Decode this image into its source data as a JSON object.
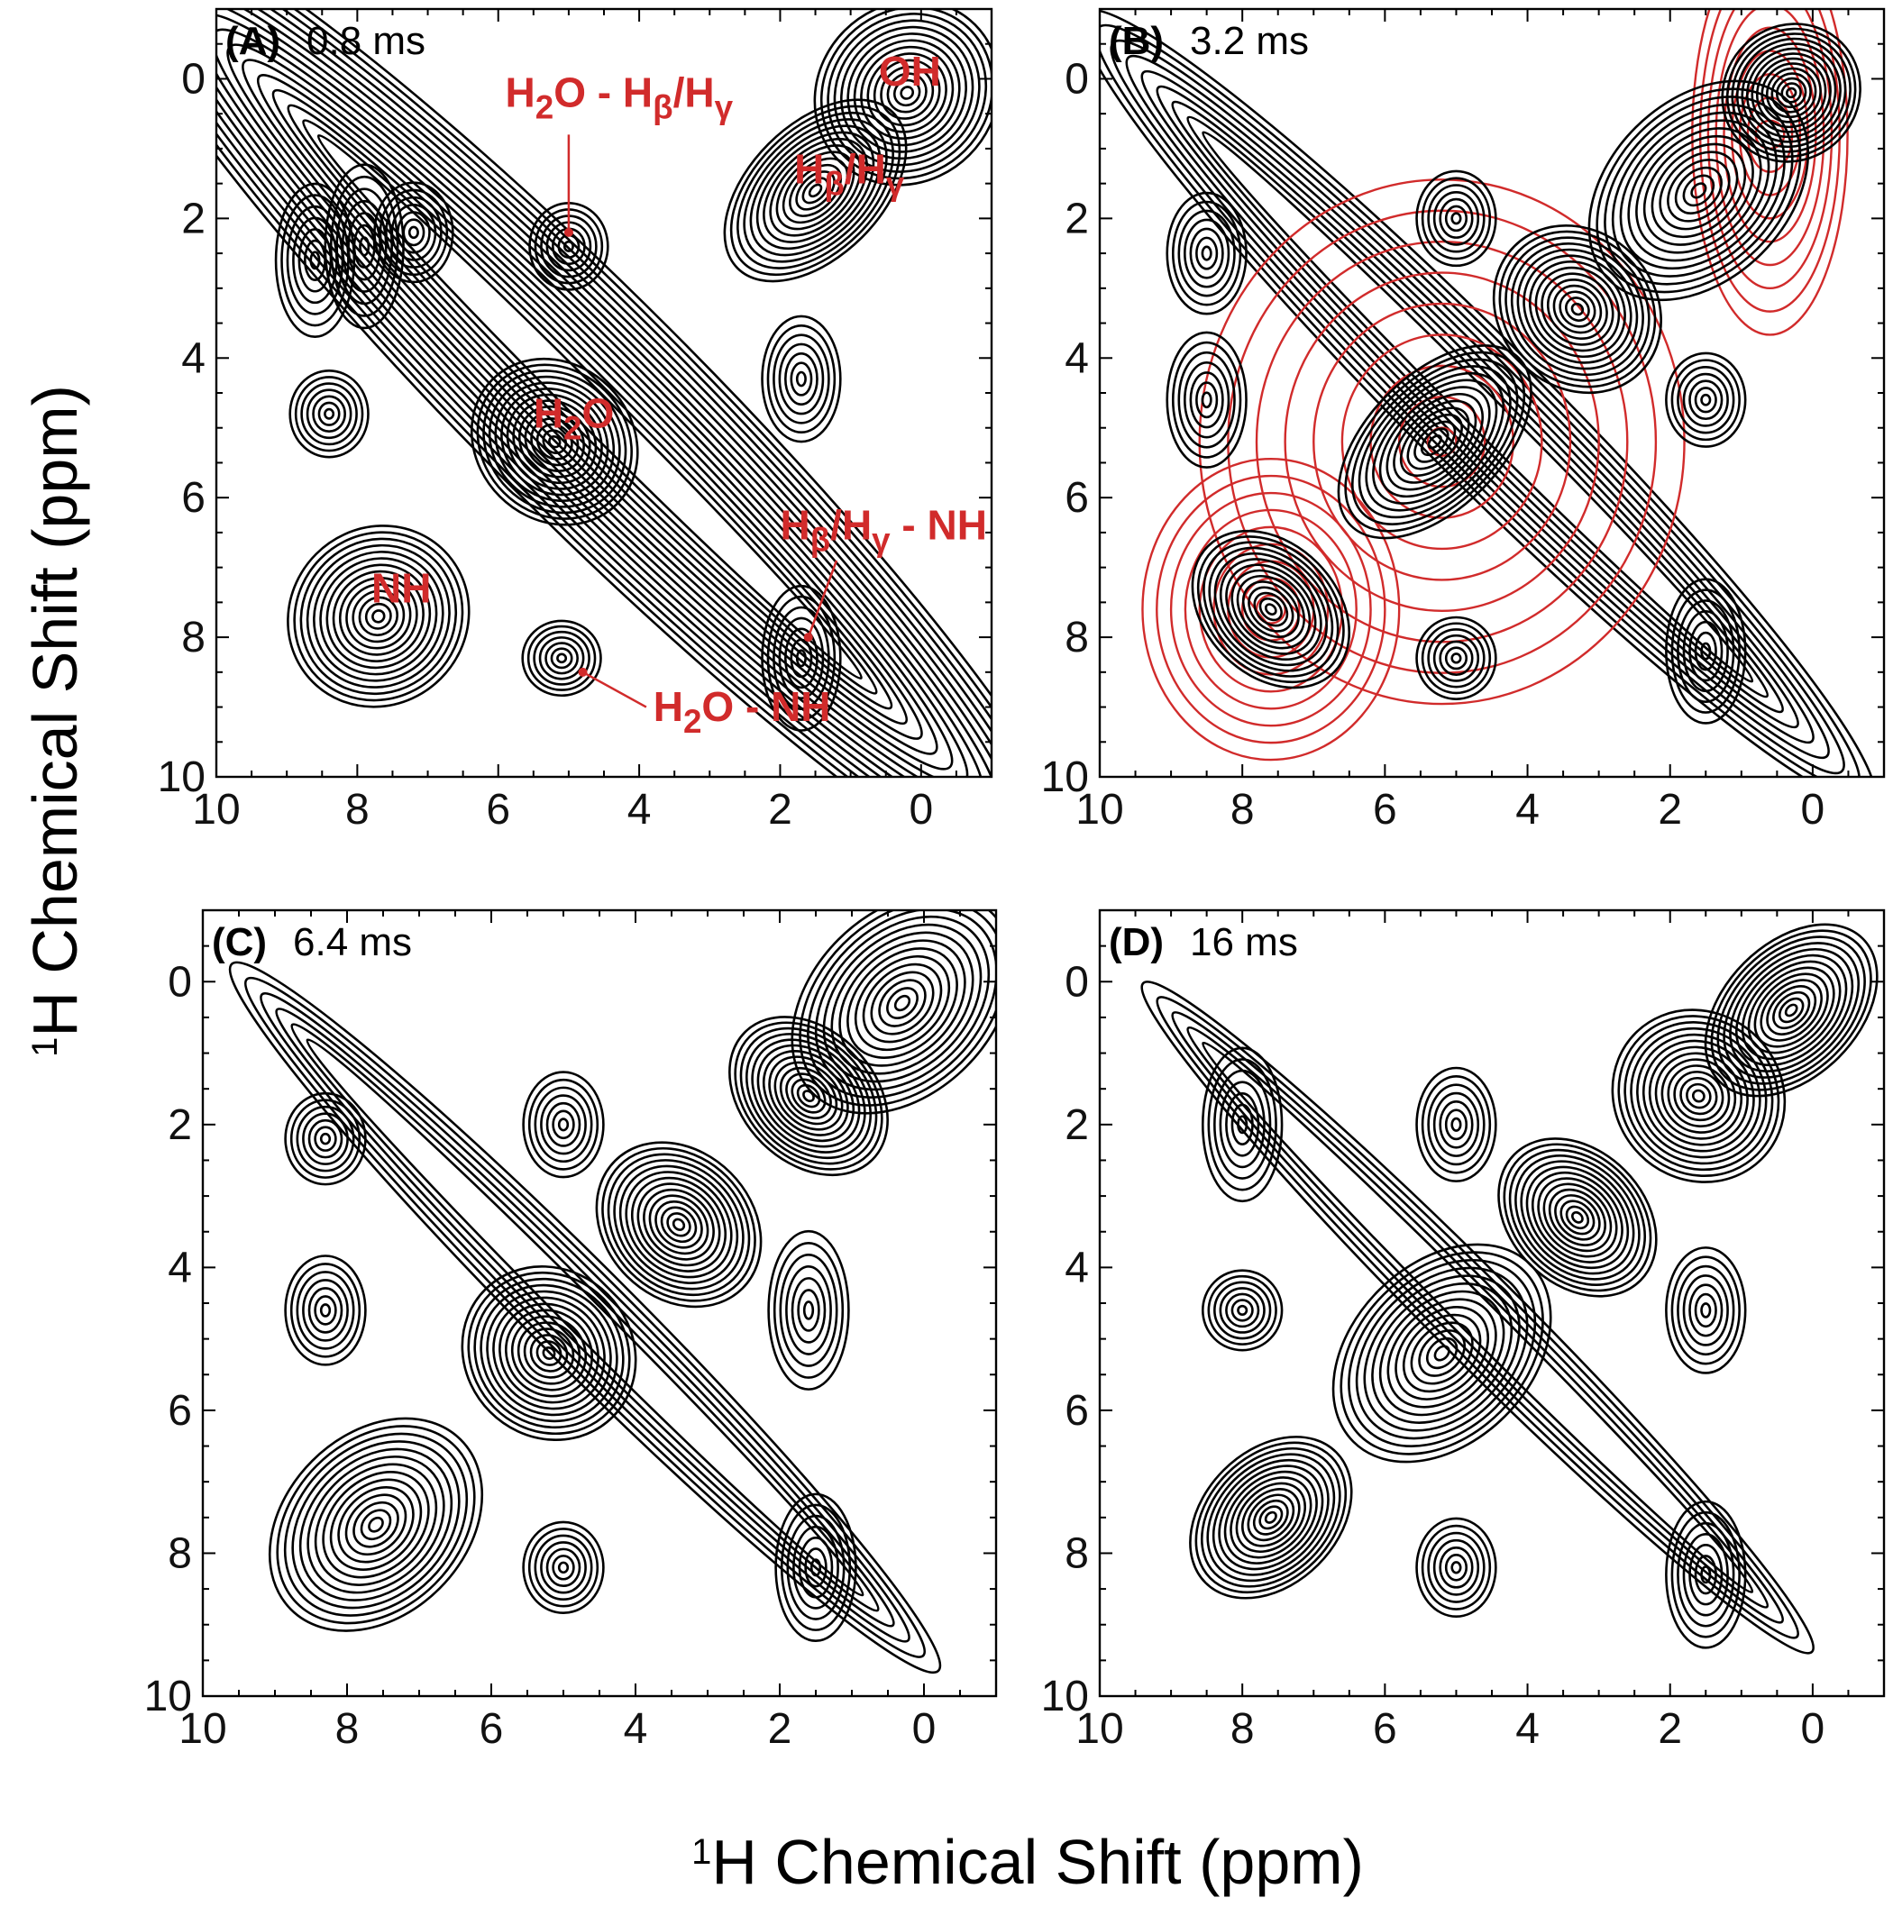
{
  "colors": {
    "contour": "#000000",
    "overlay": "#d12b2b",
    "annotation": "#d12b2b"
  },
  "figure": {
    "ylabel_sup": "1",
    "ylabel": "H Chemical Shift (ppm)",
    "xlabel_sup": "1",
    "xlabel": "H Chemical Shift (ppm)"
  },
  "chart_data": [
    {
      "type": "heatmap",
      "panel": "(A)",
      "mixing_time": "0.8 ms",
      "xlim": [
        10,
        -1
      ],
      "ylim": [
        10,
        -1
      ],
      "x_ticks": [
        "10",
        "8",
        "6",
        "4",
        "2",
        "0"
      ],
      "y_ticks": [
        "0",
        "2",
        "4",
        "6",
        "8",
        "10"
      ],
      "peaks": [
        {
          "x": 0.2,
          "y": 0.2,
          "label": "OH"
        },
        {
          "x": 1.5,
          "y": 1.6,
          "label": "Hβ/Hγ"
        },
        {
          "x": 5.2,
          "y": 5.2,
          "label": "H2O"
        },
        {
          "x": 7.7,
          "y": 7.7,
          "label": "NH"
        },
        {
          "x": 5.0,
          "y": 2.4,
          "label": "H2O - Hβ/Hγ"
        },
        {
          "x": 5.1,
          "y": 8.3,
          "label": "H2O - NH"
        },
        {
          "x": 1.7,
          "y": 8.3,
          "label": "Hβ/Hγ - NH"
        },
        {
          "x": 1.7,
          "y": 4.3
        },
        {
          "x": 8.6,
          "y": 2.6
        },
        {
          "x": 7.9,
          "y": 2.4
        },
        {
          "x": 7.2,
          "y": 2.2
        },
        {
          "x": 8.4,
          "y": 4.8
        }
      ],
      "annotations": [
        {
          "text": "OH",
          "x": 0.6,
          "y": 0.1
        },
        {
          "text": "Hβ/Hγ",
          "x": 1.8,
          "y": 1.5
        },
        {
          "text": "H2O",
          "x": 5.5,
          "y": 5.0
        },
        {
          "text": "NH",
          "x": 7.8,
          "y": 7.5
        },
        {
          "text": "H2O - Hβ/Hγ",
          "x": 5.9,
          "y": 0.4
        },
        {
          "text": "H2O - NH",
          "x": 3.8,
          "y": 9.2
        },
        {
          "text": "Hβ/Hγ - NH",
          "x": 2.0,
          "y": 6.6
        }
      ]
    },
    {
      "type": "heatmap",
      "panel": "(B)",
      "mixing_time": "3.2 ms",
      "xlim": [
        10,
        -1
      ],
      "ylim": [
        10,
        -1
      ],
      "x_ticks": [
        "10",
        "8",
        "6",
        "4",
        "2",
        "0"
      ],
      "y_ticks": [
        "0",
        "2",
        "4",
        "6",
        "8",
        "10"
      ],
      "peaks": [
        {
          "x": 0.3,
          "y": 0.2
        },
        {
          "x": 1.6,
          "y": 1.6
        },
        {
          "x": 5.3,
          "y": 5.2
        },
        {
          "x": 7.6,
          "y": 7.6
        },
        {
          "x": 5.0,
          "y": 2.0
        },
        {
          "x": 5.0,
          "y": 8.3
        },
        {
          "x": 1.5,
          "y": 8.2
        },
        {
          "x": 1.5,
          "y": 4.6
        },
        {
          "x": 8.5,
          "y": 2.5
        },
        {
          "x": 8.5,
          "y": 4.6
        },
        {
          "x": 3.3,
          "y": 3.3
        }
      ]
    },
    {
      "type": "heatmap",
      "panel": "(C)",
      "mixing_time": "6.4 ms",
      "xlim": [
        10,
        -1
      ],
      "ylim": [
        10,
        -1
      ],
      "x_ticks": [
        "10",
        "8",
        "6",
        "4",
        "2",
        "0"
      ],
      "y_ticks": [
        "0",
        "2",
        "4",
        "6",
        "8",
        "10"
      ],
      "peaks": [
        {
          "x": 0.3,
          "y": 0.3
        },
        {
          "x": 1.6,
          "y": 1.6
        },
        {
          "x": 5.2,
          "y": 5.2
        },
        {
          "x": 7.6,
          "y": 7.6
        },
        {
          "x": 5.0,
          "y": 2.0
        },
        {
          "x": 5.0,
          "y": 8.2
        },
        {
          "x": 1.5,
          "y": 8.2
        },
        {
          "x": 1.6,
          "y": 4.6
        },
        {
          "x": 8.3,
          "y": 2.2
        },
        {
          "x": 8.3,
          "y": 4.6
        },
        {
          "x": 3.4,
          "y": 3.4
        }
      ]
    },
    {
      "type": "heatmap",
      "panel": "(D)",
      "mixing_time": "16 ms",
      "xlim": [
        10,
        -1
      ],
      "ylim": [
        10,
        -1
      ],
      "x_ticks": [
        "10",
        "8",
        "6",
        "4",
        "2",
        "0"
      ],
      "y_ticks": [
        "0",
        "2",
        "4",
        "6",
        "8",
        "10"
      ],
      "peaks": [
        {
          "x": 0.3,
          "y": 0.4
        },
        {
          "x": 1.6,
          "y": 1.6
        },
        {
          "x": 5.2,
          "y": 5.2
        },
        {
          "x": 7.6,
          "y": 7.5
        },
        {
          "x": 5.0,
          "y": 2.0
        },
        {
          "x": 5.0,
          "y": 8.2
        },
        {
          "x": 1.5,
          "y": 8.3
        },
        {
          "x": 1.5,
          "y": 4.6
        },
        {
          "x": 8.0,
          "y": 2.0
        },
        {
          "x": 8.0,
          "y": 4.6
        },
        {
          "x": 3.3,
          "y": 3.3
        }
      ]
    }
  ]
}
